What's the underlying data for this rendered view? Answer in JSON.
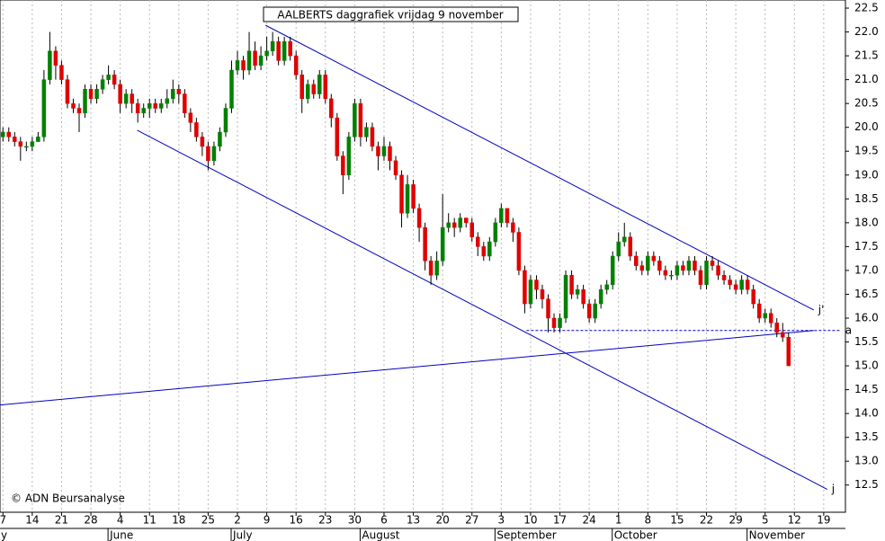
{
  "chart_data": {
    "type": "candlestick",
    "title": "AALBERTS daggrafiek vrijdag 9 november",
    "copyright": "© ADN Beursanalyse",
    "xlim": [
      -0.5,
      143.7
    ],
    "ylim": [
      11.93,
      22.67
    ],
    "yticks": [
      {
        "value": 12.5,
        "label": "12.5"
      },
      {
        "value": 13,
        "label": "13.0"
      },
      {
        "value": 13.5,
        "label": "13.5"
      },
      {
        "value": 14,
        "label": "14.0"
      },
      {
        "value": 14.5,
        "label": "14.5"
      },
      {
        "value": 15,
        "label": "15.0"
      },
      {
        "value": 15.5,
        "label": "15.5"
      },
      {
        "value": 16,
        "label": "16.0"
      },
      {
        "value": 16.5,
        "label": "16.5"
      },
      {
        "value": 17,
        "label": "17.0"
      },
      {
        "value": 17.5,
        "label": "17.5"
      },
      {
        "value": 18,
        "label": "18.0"
      },
      {
        "value": 18.5,
        "label": "18.5"
      },
      {
        "value": 19,
        "label": "19.0"
      },
      {
        "value": 19.5,
        "label": "19.5"
      },
      {
        "value": 20,
        "label": "20.0"
      },
      {
        "value": 20.5,
        "label": "20.5"
      },
      {
        "value": 21,
        "label": "21.0"
      },
      {
        "value": 21.5,
        "label": "21.5"
      },
      {
        "value": 22,
        "label": "22.0"
      },
      {
        "value": 22.5,
        "label": "22.5"
      }
    ],
    "xticks": [
      {
        "value": 0,
        "label": "7"
      },
      {
        "value": 5,
        "label": "14"
      },
      {
        "value": 10,
        "label": "21"
      },
      {
        "value": 15,
        "label": "28"
      },
      {
        "value": 20,
        "label": "4"
      },
      {
        "value": 25,
        "label": "11"
      },
      {
        "value": 30,
        "label": "18"
      },
      {
        "value": 35,
        "label": "25"
      },
      {
        "value": 40,
        "label": "2"
      },
      {
        "value": 45,
        "label": "9"
      },
      {
        "value": 50,
        "label": "16"
      },
      {
        "value": 55,
        "label": "23"
      },
      {
        "value": 60,
        "label": "30"
      },
      {
        "value": 65,
        "label": "6"
      },
      {
        "value": 70,
        "label": "13"
      },
      {
        "value": 75,
        "label": "20"
      },
      {
        "value": 80,
        "label": "27"
      },
      {
        "value": 85,
        "label": "3"
      },
      {
        "value": 90,
        "label": "10"
      },
      {
        "value": 95,
        "label": "17"
      },
      {
        "value": 100,
        "label": "24"
      },
      {
        "value": 105,
        "label": "1"
      },
      {
        "value": 110,
        "label": "8"
      },
      {
        "value": 115,
        "label": "15"
      },
      {
        "value": 120,
        "label": "22"
      },
      {
        "value": 125,
        "label": "29"
      },
      {
        "value": 130,
        "label": "5"
      },
      {
        "value": 135,
        "label": "12"
      },
      {
        "value": 140,
        "label": "19"
      }
    ],
    "months": [
      {
        "value": -0.5,
        "label": "y"
      },
      {
        "value": 19,
        "label": "June"
      },
      {
        "value": 40,
        "label": "July"
      },
      {
        "value": 62,
        "label": "August"
      },
      {
        "value": 85,
        "label": "September"
      },
      {
        "value": 105,
        "label": "October"
      },
      {
        "value": 128,
        "label": "November"
      }
    ],
    "up_color": "#008000",
    "down_color": "#e00000",
    "x": [
      0,
      1,
      2,
      3,
      4,
      5,
      6,
      7,
      8,
      9,
      10,
      11,
      12,
      13,
      14,
      15,
      16,
      17,
      18,
      19,
      20,
      21,
      22,
      23,
      24,
      25,
      26,
      27,
      28,
      29,
      30,
      31,
      32,
      33,
      34,
      35,
      36,
      37,
      38,
      39,
      40,
      41,
      42,
      43,
      44,
      45,
      46,
      47,
      48,
      49,
      50,
      51,
      52,
      53,
      54,
      55,
      56,
      57,
      58,
      59,
      60,
      61,
      62,
      63,
      64,
      65,
      66,
      67,
      68,
      69,
      70,
      71,
      72,
      73,
      74,
      75,
      76,
      77,
      78,
      79,
      80,
      81,
      82,
      83,
      84,
      85,
      86,
      87,
      88,
      89,
      90,
      91,
      92,
      93,
      94,
      95,
      96,
      97,
      98,
      99,
      100,
      101,
      102,
      103,
      104,
      105,
      106,
      107,
      108,
      109,
      110,
      111,
      112,
      113,
      114,
      115,
      116,
      117,
      118,
      119,
      120,
      121,
      122,
      123,
      124,
      125,
      126,
      127,
      128,
      129,
      130,
      131,
      132,
      133,
      134
    ],
    "open": [
      19.8,
      19.9,
      19.8,
      19.7,
      19.6,
      19.6,
      19.7,
      19.8,
      21.0,
      21.6,
      21.3,
      21.0,
      20.5,
      20.4,
      20.3,
      20.8,
      20.6,
      20.8,
      21.0,
      21.1,
      20.9,
      20.5,
      20.7,
      20.5,
      20.3,
      20.4,
      20.5,
      20.4,
      20.5,
      20.6,
      20.8,
      20.7,
      20.3,
      20.1,
      19.8,
      19.6,
      19.3,
      19.6,
      19.9,
      20.4,
      21.2,
      21.4,
      21.2,
      21.6,
      21.3,
      21.5,
      21.6,
      21.8,
      21.4,
      21.8,
      21.5,
      21.1,
      20.6,
      20.9,
      20.7,
      21.1,
      20.6,
      20.2,
      19.4,
      19.0,
      19.8,
      20.5,
      19.8,
      20.0,
      19.6,
      19.4,
      19.6,
      19.3,
      19.0,
      18.2,
      18.8,
      18.3,
      17.9,
      17.2,
      16.9,
      17.2,
      17.9,
      18.0,
      17.9,
      18.1,
      18.0,
      17.7,
      17.5,
      17.3,
      17.6,
      18.0,
      18.3,
      18.0,
      17.8,
      17.0,
      16.3,
      16.8,
      16.6,
      16.4,
      16.0,
      15.8,
      16.0,
      16.9,
      16.5,
      16.6,
      16.3,
      16.0,
      16.3,
      16.6,
      16.7,
      17.3,
      17.6,
      17.7,
      17.3,
      17.1,
      17.0,
      17.3,
      17.2,
      17.0,
      16.9,
      16.9,
      17.1,
      17.0,
      17.2,
      17.0,
      16.7,
      17.2,
      17.1,
      16.9,
      16.8,
      16.7,
      16.6,
      16.8,
      16.6,
      16.3,
      16.0,
      16.1,
      15.9,
      15.7,
      15.6
    ],
    "high": [
      20.0,
      20.0,
      19.9,
      19.8,
      19.7,
      19.8,
      19.9,
      21.2,
      22.0,
      21.7,
      21.4,
      21.1,
      20.6,
      20.5,
      20.9,
      20.9,
      20.9,
      21.1,
      21.3,
      21.2,
      21.0,
      20.8,
      20.8,
      20.6,
      20.5,
      20.6,
      20.6,
      20.6,
      20.8,
      21.0,
      20.9,
      20.8,
      20.4,
      20.2,
      19.9,
      19.7,
      19.7,
      20.0,
      20.5,
      21.4,
      21.6,
      21.5,
      22.0,
      21.8,
      21.7,
      21.9,
      22.0,
      21.9,
      21.9,
      21.9,
      21.6,
      21.2,
      21.0,
      21.0,
      21.2,
      21.2,
      20.7,
      20.3,
      19.5,
      19.9,
      20.6,
      20.6,
      20.1,
      20.1,
      19.7,
      19.8,
      19.7,
      19.4,
      19.1,
      19.0,
      18.9,
      18.4,
      18.0,
      17.3,
      17.4,
      18.6,
      18.2,
      18.1,
      18.2,
      18.1,
      18.1,
      17.8,
      17.6,
      17.7,
      18.1,
      18.4,
      18.3,
      18.1,
      17.9,
      17.1,
      16.9,
      16.9,
      16.7,
      16.5,
      16.1,
      16.1,
      17.0,
      17.0,
      16.7,
      16.7,
      16.4,
      16.4,
      16.7,
      16.8,
      17.4,
      17.8,
      18.0,
      17.8,
      17.4,
      17.2,
      17.4,
      17.4,
      17.3,
      17.1,
      17.0,
      17.2,
      17.2,
      17.3,
      17.3,
      17.1,
      17.3,
      17.3,
      17.2,
      17.0,
      16.9,
      16.8,
      16.9,
      16.9,
      16.7,
      16.4,
      16.2,
      16.2,
      16.0,
      15.9,
      15.7
    ],
    "low": [
      19.7,
      19.7,
      19.6,
      19.3,
      19.5,
      19.5,
      19.7,
      19.7,
      20.9,
      21.0,
      20.9,
      20.4,
      20.3,
      19.9,
      20.2,
      20.5,
      20.5,
      20.7,
      20.9,
      20.8,
      20.3,
      20.4,
      20.3,
      20.1,
      20.2,
      20.2,
      20.3,
      20.3,
      20.4,
      20.5,
      20.5,
      20.2,
      19.9,
      19.7,
      19.4,
      19.1,
      19.2,
      19.5,
      19.8,
      20.3,
      21.1,
      21.0,
      21.1,
      21.2,
      21.2,
      21.4,
      21.5,
      21.3,
      21.3,
      21.4,
      21.0,
      20.3,
      20.5,
      20.6,
      20.6,
      20.5,
      20.0,
      19.3,
      18.6,
      18.9,
      19.7,
      19.6,
      19.7,
      19.5,
      19.1,
      19.3,
      19.1,
      18.9,
      17.9,
      18.1,
      18.2,
      17.6,
      17.0,
      16.7,
      16.8,
      17.1,
      17.8,
      17.7,
      17.8,
      17.9,
      17.6,
      17.3,
      17.2,
      17.2,
      17.5,
      17.9,
      17.9,
      17.6,
      16.9,
      16.1,
      16.2,
      16.4,
      16.2,
      15.7,
      15.7,
      15.7,
      15.9,
      16.4,
      16.4,
      16.2,
      15.9,
      15.9,
      16.2,
      16.5,
      16.6,
      17.2,
      17.5,
      17.2,
      17.0,
      16.9,
      16.9,
      17.1,
      16.9,
      16.8,
      16.8,
      16.8,
      16.9,
      16.9,
      16.9,
      16.6,
      16.6,
      17.0,
      16.8,
      16.7,
      16.6,
      16.5,
      16.5,
      16.5,
      16.2,
      15.9,
      15.9,
      15.8,
      15.6,
      15.5,
      15.0
    ],
    "close": [
      19.9,
      19.8,
      19.7,
      19.6,
      19.6,
      19.7,
      19.8,
      21.0,
      21.6,
      21.3,
      21.0,
      20.5,
      20.4,
      20.3,
      20.8,
      20.6,
      20.8,
      21.0,
      21.1,
      20.9,
      20.5,
      20.7,
      20.5,
      20.3,
      20.4,
      20.5,
      20.4,
      20.5,
      20.6,
      20.8,
      20.7,
      20.3,
      20.1,
      19.8,
      19.6,
      19.3,
      19.6,
      19.9,
      20.4,
      21.2,
      21.4,
      21.2,
      21.6,
      21.3,
      21.5,
      21.6,
      21.8,
      21.4,
      21.8,
      21.5,
      21.1,
      20.6,
      20.9,
      20.7,
      21.1,
      20.6,
      20.2,
      19.4,
      19.0,
      19.8,
      20.5,
      19.8,
      20.0,
      19.6,
      19.4,
      19.6,
      19.3,
      19.0,
      18.2,
      18.8,
      18.3,
      17.9,
      17.2,
      16.9,
      17.2,
      17.9,
      18.0,
      17.9,
      18.1,
      18.0,
      17.7,
      17.5,
      17.3,
      17.6,
      18.0,
      18.3,
      18.0,
      17.8,
      17.0,
      16.3,
      16.8,
      16.6,
      16.4,
      16.0,
      15.8,
      16.0,
      16.9,
      16.5,
      16.6,
      16.3,
      16.0,
      16.3,
      16.6,
      16.7,
      17.3,
      17.6,
      17.7,
      17.3,
      17.1,
      17.0,
      17.3,
      17.2,
      17.0,
      16.9,
      16.9,
      17.1,
      17.0,
      17.2,
      17.0,
      16.7,
      17.2,
      17.1,
      16.9,
      16.8,
      16.7,
      16.6,
      16.8,
      16.6,
      16.3,
      16.0,
      16.1,
      15.9,
      15.7,
      15.6,
      15.0
    ],
    "lines": [
      {
        "label": "j'",
        "color": "#0000c0",
        "dashed": false,
        "x": [
          44.8,
          138.3
        ],
        "y": [
          22.14,
          16.17
        ]
      },
      {
        "label": "a",
        "color": "#0000c0",
        "dashed": true,
        "x": [
          89.3,
          142.9
        ],
        "y": [
          15.74,
          15.74
        ]
      },
      {
        "label": "j",
        "color": "#0000c0",
        "dashed": false,
        "x": [
          22.9,
          140.6
        ],
        "y": [
          19.94,
          12.41
        ]
      },
      {
        "label": null,
        "color": "#0000c0",
        "dashed": false,
        "x": [
          -0.5,
          138.3
        ],
        "y": [
          14.18,
          15.74
        ]
      }
    ]
  }
}
